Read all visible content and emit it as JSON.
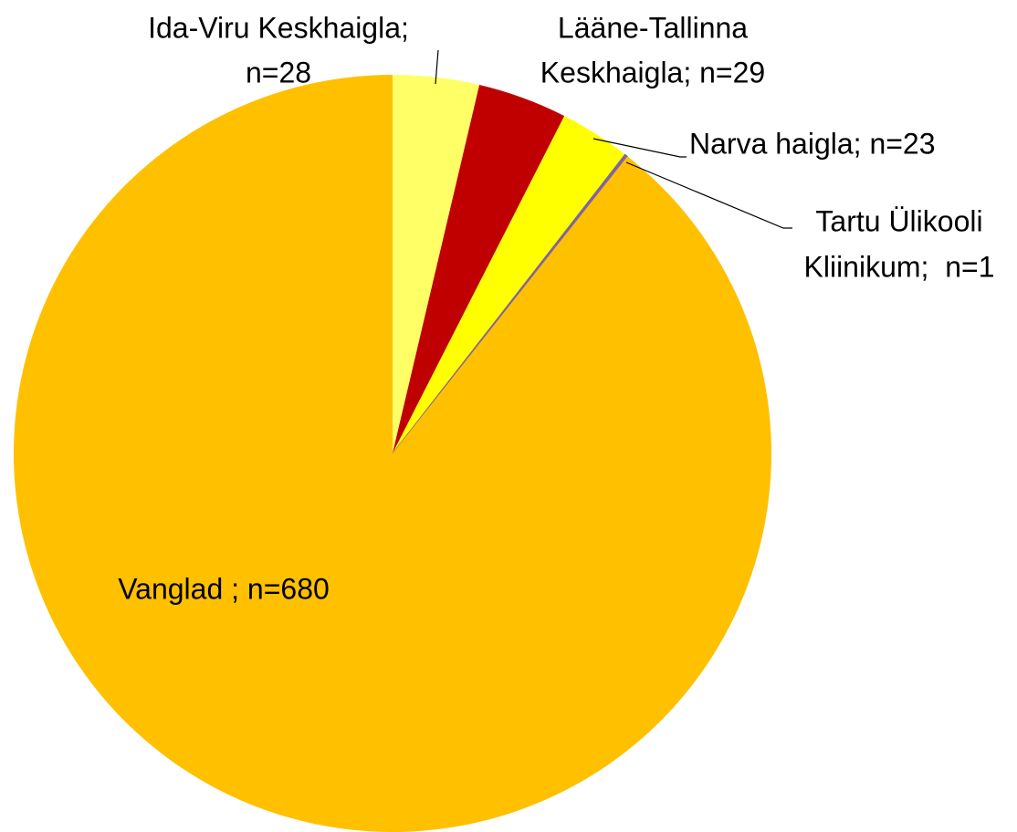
{
  "chart_data": {
    "type": "pie",
    "categories": [
      "Ida-Viru Keskhaigla",
      "Lääne-Tallinna Keskhaigla",
      "Narva haigla",
      "Tartu Ülikooli Kliinikum",
      "Vanglad"
    ],
    "values": [
      28,
      29,
      23,
      1,
      680
    ],
    "value_labels": [
      [
        "Ida-Viru Keskhaigla;",
        "n=28"
      ],
      [
        "Lääne-Tallinna",
        "Keskhaigla; n=29"
      ],
      [
        "Narva haigla; n=23"
      ],
      [
        "Tartu Ülikooli",
        "Kliinikum;  n=1"
      ],
      [
        "Vanglad ; n=680"
      ]
    ],
    "colors": [
      "#ffff66",
      "#c00000",
      "#ffff00",
      "#8064a2",
      "#ffc000"
    ]
  }
}
